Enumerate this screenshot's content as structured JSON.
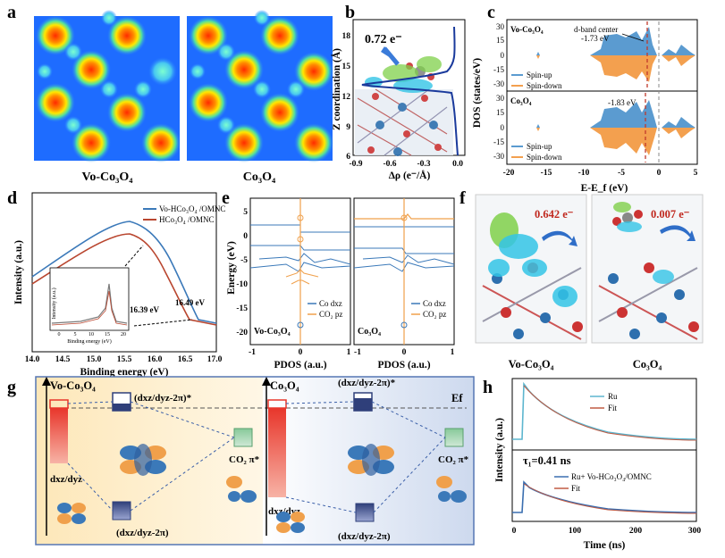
{
  "panels": {
    "a": {
      "label": "a",
      "left_caption": "Vo-Co₃O₄",
      "right_caption": "Co₃O₄"
    },
    "b": {
      "label": "b",
      "charge": "0.72 e⁻",
      "ylabel": "Z coordination (Å)",
      "xlabel": "Δρ (e⁻/Å)",
      "yticks": [
        "18",
        "15",
        "12",
        "9",
        "6"
      ],
      "xticks": [
        "-0.9",
        "-0.6",
        "-0.3",
        "0.0"
      ]
    },
    "c": {
      "label": "c",
      "top_title": "Vo-Co₃O₄",
      "top_annot_1": "d-band center",
      "top_annot_2": "-1.73 eV",
      "bottom_title": "Co₃O₄",
      "bottom_annot": "-1.83 eV",
      "legend": [
        "Spin-up",
        "Spin-down"
      ],
      "ylabel": "DOS (states/eV)",
      "xlabel": "E-E_f (eV)",
      "top_yticks": [
        "30",
        "15",
        "0",
        "-15",
        "-30"
      ],
      "bottom_yticks": [
        "30",
        "15",
        "0",
        "-15",
        "-30"
      ],
      "xticks": [
        "-20",
        "-15",
        "-10",
        "-5",
        "0",
        "5"
      ]
    },
    "d": {
      "label": "d",
      "legend": [
        "Vo-HCo₃O₄ /OMNC",
        "HCo₃O₄ /OMNC"
      ],
      "ylabel": "Intensity (a.u.)",
      "xlabel": "Binding energy (eV)",
      "xticks": [
        "14.0",
        "14.5",
        "15.0",
        "15.5",
        "16.0",
        "16.5",
        "17.0"
      ],
      "annot_1": "16.49 eV",
      "annot_2": "16.39 eV",
      "inset_ylabel": "Intensity (a.u.)",
      "inset_xlabel": "Binding energy (eV)",
      "inset_xticks": [
        "0",
        "5",
        "10",
        "15",
        "20"
      ]
    },
    "e": {
      "label": "e",
      "ylabel": "Energy (eV)",
      "yticks": [
        "5",
        "0",
        "-5",
        "-10",
        "-15",
        "-20"
      ],
      "left_xlabel": "PDOS (a.u.)",
      "right_xlabel": "PDOS (a.u.)",
      "left_xticks": [
        "-1",
        "0",
        "1"
      ],
      "right_xticks": [
        "-1",
        "0",
        "1"
      ],
      "left_tag": "Vo-Co₃O₄",
      "right_tag": "Co₃O₄",
      "legend": [
        "Co dxz",
        "CO₂ pz"
      ]
    },
    "f": {
      "label": "f",
      "left_charge": "0.642 e⁻",
      "right_charge": "0.007 e⁻",
      "left_caption": "Vo-Co₃O₄",
      "right_caption": "Co₃O₄"
    },
    "g": {
      "label": "g",
      "left_title": "Vo-Co₃O₄",
      "right_title": "Co₃O₄",
      "antibond": "(dxz/dyz-2π)*",
      "bond": "(dxz/dyz-2π)",
      "dxz": "dxz/dyz",
      "co2": "CO₂ π*",
      "ef": "Ef"
    },
    "h": {
      "label": "h",
      "ylabel": "Intensity (a.u.)",
      "xlabel": "Time (ns)",
      "xticks": [
        "0",
        "100",
        "200",
        "300"
      ],
      "top_legend": [
        "Ru",
        "Fit"
      ],
      "bottom_legend": [
        "Ru+ Vo-HCo₃O₄/OMNC",
        "Fit"
      ],
      "tau": "τ₁=0.41 ns"
    }
  },
  "colors": {
    "blue": "#3b79b9",
    "orange": "#f0a04b",
    "red": "#d0442f",
    "spin_up_fill": "#5b9bd0",
    "spin_down_fill": "#f3a04f"
  }
}
